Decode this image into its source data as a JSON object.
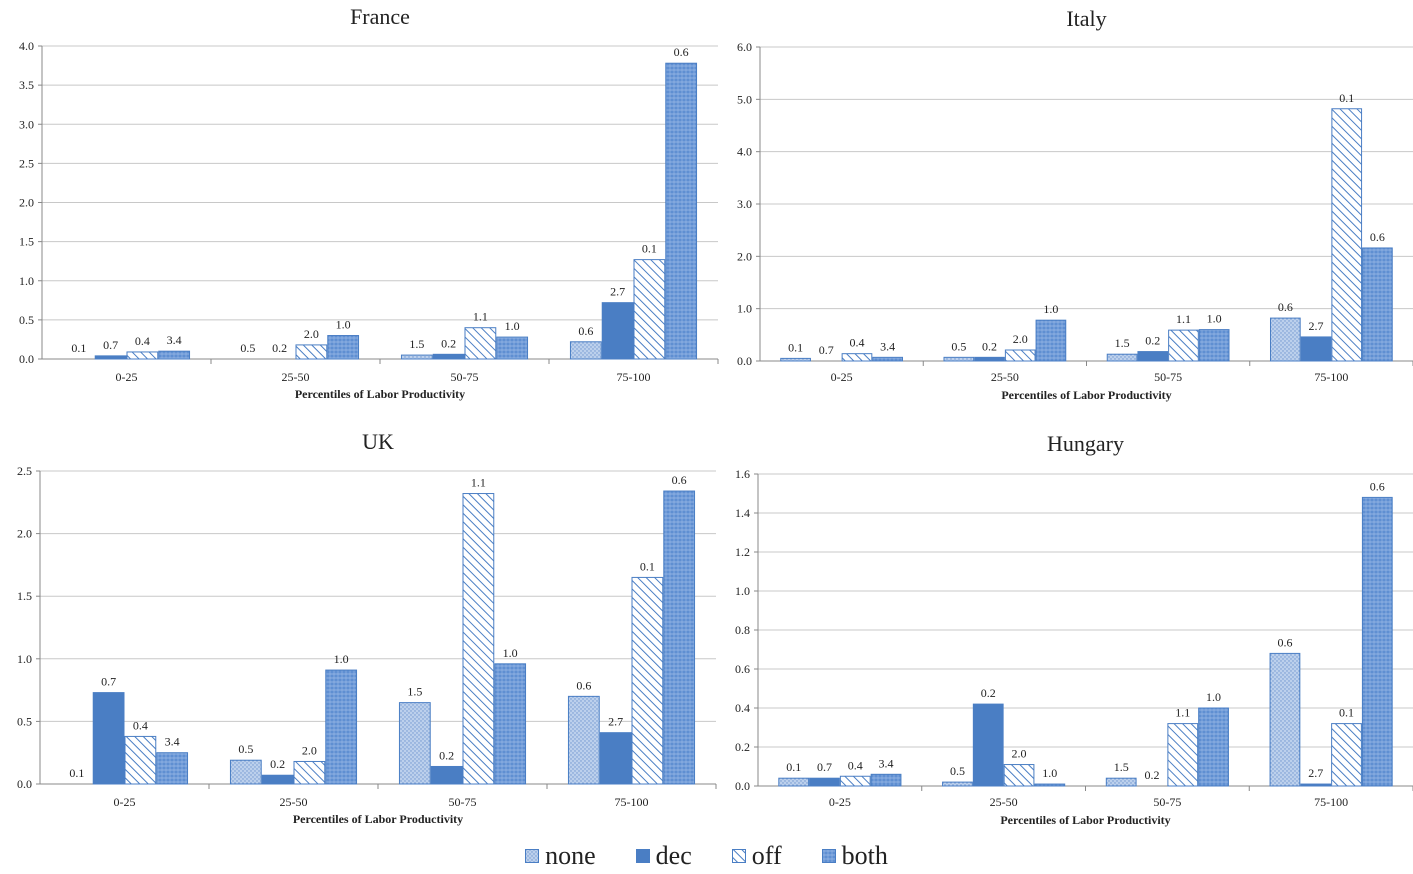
{
  "colors": {
    "none": "#a9c3e6",
    "dec": "#4a7ec4",
    "off": "#ffffff",
    "both": "#7aa2dc",
    "stroke": "#4a7ec4",
    "grid": "#c8c8c8",
    "axis": "#888888"
  },
  "legend": [
    {
      "key": "none",
      "label": "none"
    },
    {
      "key": "dec",
      "label": "dec"
    },
    {
      "key": "off",
      "label": "off"
    },
    {
      "key": "both",
      "label": "both"
    }
  ],
  "chart_data": [
    {
      "type": "bar",
      "title": "France",
      "xlabel": "Percentiles of Labor Productivity",
      "ylabel": "",
      "categories": [
        "0-25",
        "25-50",
        "50-75",
        "75-100"
      ],
      "ylim": [
        0,
        4.0
      ],
      "yticks": [
        "0.0",
        "0.5",
        "1.0",
        "1.5",
        "2.0",
        "2.5",
        "3.0",
        "3.5",
        "4.0"
      ],
      "grid": true,
      "legend_position": "bottom",
      "series": [
        {
          "name": "none",
          "values": [
            0.0,
            0.0,
            0.05,
            0.22
          ],
          "labels": [
            "0.1",
            "0.5",
            "1.5",
            "0.6"
          ]
        },
        {
          "name": "dec",
          "values": [
            0.04,
            0.0,
            0.06,
            0.72
          ],
          "labels": [
            "0.7",
            "0.2",
            "0.2",
            "2.7"
          ]
        },
        {
          "name": "off",
          "values": [
            0.09,
            0.18,
            0.4,
            1.27
          ],
          "labels": [
            "0.4",
            "2.0",
            "1.1",
            "0.1"
          ]
        },
        {
          "name": "both",
          "values": [
            0.1,
            0.3,
            0.28,
            3.78
          ],
          "labels": [
            "3.4",
            "1.0",
            "1.0",
            "0.6"
          ]
        }
      ]
    },
    {
      "type": "bar",
      "title": "Italy",
      "xlabel": "Percentiles of Labor Productivity",
      "ylabel": "",
      "categories": [
        "0-25",
        "25-50",
        "50-75",
        "75-100"
      ],
      "ylim": [
        0,
        6.0
      ],
      "yticks": [
        "0.0",
        "1.0",
        "2.0",
        "3.0",
        "4.0",
        "5.0",
        "6.0"
      ],
      "grid": true,
      "legend_position": "bottom",
      "series": [
        {
          "name": "none",
          "values": [
            0.05,
            0.07,
            0.13,
            0.82
          ],
          "labels": [
            "0.1",
            "0.5",
            "1.5",
            "0.6"
          ]
        },
        {
          "name": "dec",
          "values": [
            0.0,
            0.07,
            0.18,
            0.46
          ],
          "labels": [
            "0.7",
            "0.2",
            "0.2",
            "2.7"
          ]
        },
        {
          "name": "off",
          "values": [
            0.14,
            0.21,
            0.59,
            4.82
          ],
          "labels": [
            "0.4",
            "2.0",
            "1.1",
            "0.1"
          ]
        },
        {
          "name": "both",
          "values": [
            0.07,
            0.78,
            0.6,
            2.16
          ],
          "labels": [
            "3.4",
            "1.0",
            "1.0",
            "0.6"
          ]
        }
      ]
    },
    {
      "type": "bar",
      "title": "UK",
      "xlabel": "Percentiles of Labor Productivity",
      "ylabel": "",
      "categories": [
        "0-25",
        "25-50",
        "50-75",
        "75-100"
      ],
      "ylim": [
        0,
        2.5
      ],
      "yticks": [
        "0.0",
        "0.5",
        "1.0",
        "1.5",
        "2.0",
        "2.5"
      ],
      "grid": true,
      "legend_position": "bottom",
      "series": [
        {
          "name": "none",
          "values": [
            0.0,
            0.19,
            0.65,
            0.7
          ],
          "labels": [
            "0.1",
            "0.5",
            "1.5",
            "0.6"
          ]
        },
        {
          "name": "dec",
          "values": [
            0.73,
            0.07,
            0.14,
            0.41
          ],
          "labels": [
            "0.7",
            "0.2",
            "0.2",
            "2.7"
          ]
        },
        {
          "name": "off",
          "values": [
            0.38,
            0.18,
            2.32,
            1.65
          ],
          "labels": [
            "0.4",
            "2.0",
            "1.1",
            "0.1"
          ]
        },
        {
          "name": "both",
          "values": [
            0.25,
            0.91,
            0.96,
            2.34
          ],
          "labels": [
            "3.4",
            "1.0",
            "1.0",
            "0.6"
          ]
        }
      ]
    },
    {
      "type": "bar",
      "title": "Hungary",
      "xlabel": "Percentiles of Labor Productivity",
      "ylabel": "",
      "categories": [
        "0-25",
        "25-50",
        "50-75",
        "75-100"
      ],
      "ylim": [
        0,
        1.6
      ],
      "yticks": [
        "0.0",
        "0.2",
        "0.4",
        "0.6",
        "0.8",
        "1.0",
        "1.2",
        "1.4",
        "1.6"
      ],
      "grid": true,
      "legend_position": "bottom",
      "series": [
        {
          "name": "none",
          "values": [
            0.04,
            0.02,
            0.04,
            0.68
          ],
          "labels": [
            "0.1",
            "0.5",
            "1.5",
            "0.6"
          ]
        },
        {
          "name": "dec",
          "values": [
            0.04,
            0.42,
            0.0,
            0.01
          ],
          "labels": [
            "0.7",
            "0.2",
            "0.2",
            "2.7"
          ]
        },
        {
          "name": "off",
          "values": [
            0.05,
            0.11,
            0.32,
            0.32
          ],
          "labels": [
            "0.4",
            "2.0",
            "1.1",
            "0.1"
          ]
        },
        {
          "name": "both",
          "values": [
            0.06,
            0.01,
            0.4,
            1.48
          ],
          "labels": [
            "3.4",
            "1.0",
            "1.0",
            "0.6"
          ]
        }
      ]
    }
  ]
}
